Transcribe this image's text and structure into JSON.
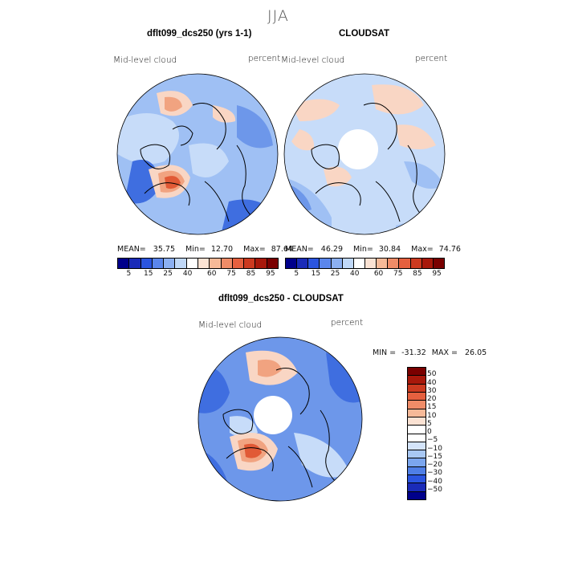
{
  "season": "JJA",
  "panels": {
    "left": {
      "title": "dflt099_dcs250 (yrs 1-1)",
      "variable": "Mid-level cloud",
      "units": "percent",
      "stats": {
        "mean_label": "MEAN=",
        "mean": "35.75",
        "min_label": "Min=",
        "min": "12.70",
        "max_label": "Max=",
        "max": "87.64"
      }
    },
    "right": {
      "title": "CLOUDSAT",
      "variable": "Mid-level cloud",
      "units": "percent",
      "stats": {
        "mean_label": "MEAN=",
        "mean": "46.29",
        "min_label": "Min=",
        "min": "30.84",
        "max_label": "Max=",
        "max": "74.76"
      }
    },
    "diff": {
      "title": "dflt099_dcs250 - CLOUDSAT",
      "variable": "Mid-level cloud",
      "units": "percent",
      "minmax": {
        "min_label": "MIN =",
        "min": "-31.32",
        "max_label": "MAX =",
        "max": "26.05"
      }
    }
  },
  "colorbar_abs": {
    "labels": [
      "5",
      "15",
      "25",
      "40",
      "60",
      "75",
      "85",
      "95"
    ],
    "colors": [
      "#00008b",
      "#1a2bb8",
      "#2b55e0",
      "#5b86ec",
      "#8cb0f2",
      "#c0d8f8",
      "#ffffff",
      "#fbe2d3",
      "#f6b998",
      "#ef8c68",
      "#e5603f",
      "#cc3a20",
      "#a8180b",
      "#7a0000"
    ]
  },
  "colorbar_diff": {
    "labels": [
      "50",
      "40",
      "30",
      "20",
      "15",
      "10",
      "5",
      "0",
      "−5",
      "−10",
      "−15",
      "−20",
      "−30",
      "−40",
      "−50"
    ],
    "colors": [
      "#7a0000",
      "#a8180b",
      "#cc3a20",
      "#e5603f",
      "#ef8c68",
      "#f6b998",
      "#fbe2d3",
      "#ffffff",
      "#ffffff",
      "#d4e4fa",
      "#a8c8f4",
      "#7ba6ee",
      "#4f7fe6",
      "#2b55e0",
      "#1a2bb8",
      "#00008b"
    ]
  },
  "map_palette": {
    "ocean": "#9fc0f4",
    "blue_light": "#c7dcf9",
    "blue_mid": "#6d97ea",
    "blue_deep": "#3f6ee0",
    "warm_light": "#f9d6c4",
    "warm_mid": "#f1a380",
    "warm_deep": "#e15a36",
    "pole_hole": "#ffffff",
    "coast": "#000000"
  }
}
